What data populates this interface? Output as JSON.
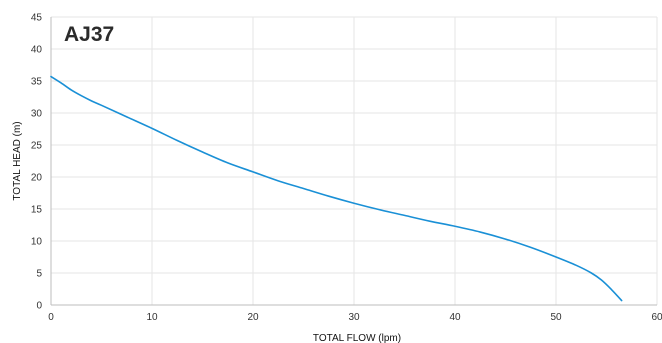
{
  "chart_data": {
    "type": "line",
    "title": "AJ37",
    "xlabel": "TOTAL FLOW (lpm)",
    "ylabel": "TOTAL HEAD (m)",
    "xlim": [
      0,
      60
    ],
    "ylim": [
      0,
      45
    ],
    "x_ticks": [
      "0",
      "10",
      "20",
      "30",
      "40",
      "50",
      "60"
    ],
    "y_ticks": [
      "0",
      "5",
      "10",
      "15",
      "20",
      "25",
      "30",
      "35",
      "40",
      "45"
    ],
    "grid": true,
    "line_color": "#1a90d6",
    "series": [
      {
        "x": [
          0,
          1,
          2,
          3,
          4,
          5,
          7.5,
          10,
          12.5,
          15,
          17.5,
          20,
          22.5,
          25,
          27.5,
          30,
          32.5,
          35,
          37.5,
          40,
          42.5,
          45,
          47.5,
          50,
          52,
          53.5,
          54.5,
          55.5,
          56.5
        ],
        "y": [
          35.7,
          34.7,
          33.6,
          32.7,
          31.9,
          31.2,
          29.4,
          27.6,
          25.7,
          23.9,
          22.2,
          20.8,
          19.4,
          18.2,
          17.0,
          15.9,
          14.9,
          14.0,
          13.1,
          12.3,
          11.4,
          10.3,
          9.0,
          7.5,
          6.2,
          5.0,
          3.9,
          2.4,
          0.7
        ]
      }
    ]
  }
}
